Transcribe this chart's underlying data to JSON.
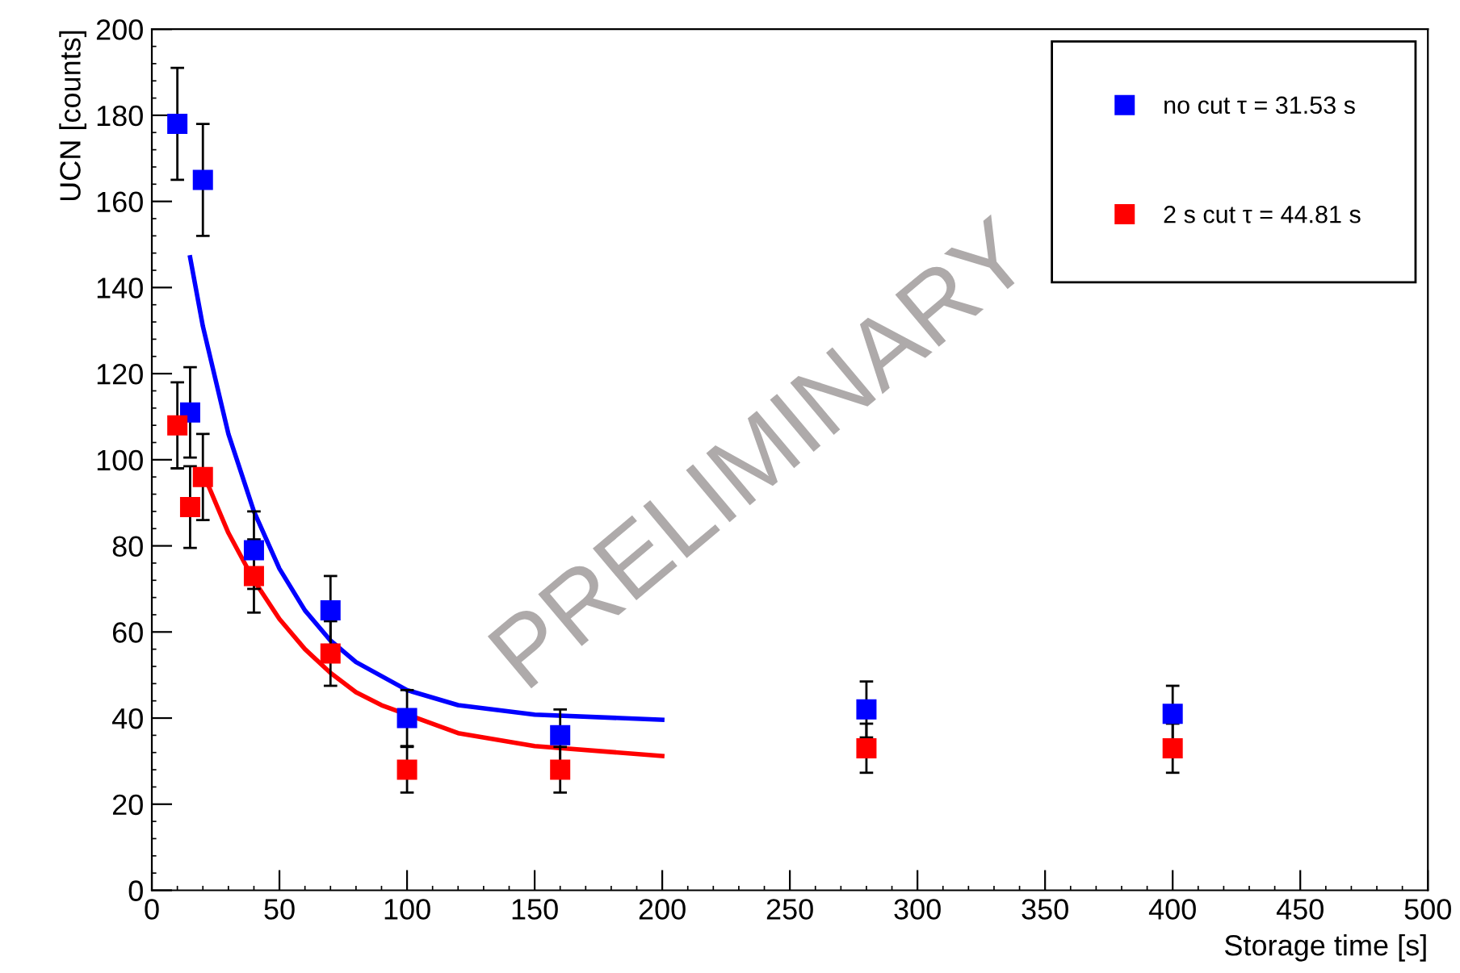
{
  "chart_data": {
    "type": "scatter",
    "xlabel": "Storage time [s]",
    "ylabel": "UCN [counts]",
    "xlim": [
      0,
      500
    ],
    "ylim": [
      0,
      200
    ],
    "xticks": [
      0,
      50,
      100,
      150,
      200,
      250,
      300,
      350,
      400,
      450,
      500
    ],
    "yticks": [
      0,
      20,
      40,
      60,
      80,
      100,
      120,
      140,
      160,
      180,
      200
    ],
    "grid": false,
    "legend": "top right",
    "marker": "square",
    "annotations": [
      "PRELIMINARY"
    ],
    "series": [
      {
        "name": "no cut τ = 31.53 s",
        "color": "#0000ff",
        "x": [
          10,
          20,
          15,
          40,
          70,
          100,
          160,
          280,
          400
        ],
        "values": [
          178,
          165,
          111,
          79,
          65,
          40,
          36,
          42,
          41
        ],
        "errors": [
          13,
          13,
          10.5,
          9,
          8,
          6.5,
          6,
          6.5,
          6.5
        ]
      },
      {
        "name": "2 s cut τ = 44.81 s",
        "color": "#ff0000",
        "x": [
          10,
          15,
          20,
          40,
          70,
          100,
          160,
          280,
          400
        ],
        "values": [
          108,
          89,
          96,
          73,
          55,
          28,
          28,
          33,
          33
        ],
        "errors": [
          10,
          9.5,
          10,
          8.5,
          7.5,
          5.3,
          5.3,
          5.7,
          5.7
        ]
      },
      {
        "type": "line",
        "color": "#0000ff",
        "marker": "none",
        "x": [
          15,
          20,
          30,
          40,
          50,
          60,
          70,
          80,
          100,
          120,
          150,
          200
        ],
        "values": [
          147,
          131,
          106,
          88,
          74.7,
          65,
          58,
          53,
          46.5,
          43,
          40.8,
          39.6
        ]
      },
      {
        "type": "line",
        "color": "#ff0000",
        "marker": "none",
        "x": [
          20,
          30,
          40,
          50,
          60,
          70,
          80,
          90,
          120,
          150,
          200
        ],
        "values": [
          97,
          83,
          72,
          63,
          56,
          50.5,
          46,
          43,
          36.5,
          33.5,
          31.2
        ]
      }
    ]
  }
}
